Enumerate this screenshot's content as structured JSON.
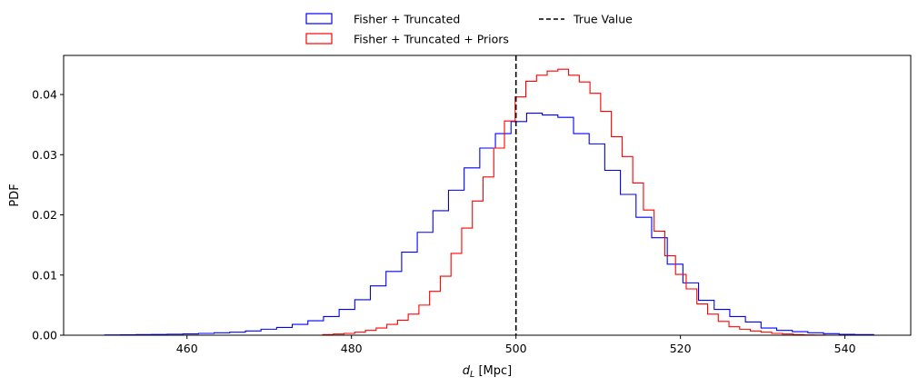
{
  "chart_data": {
    "type": "histogram",
    "xlabel": "d_L [Mpc]",
    "xlabel_parts": {
      "main": "d",
      "sub": "L",
      "rest": " [Mpc]"
    },
    "ylabel": "PDF",
    "xlim": [
      445,
      548
    ],
    "ylim": [
      0,
      0.0465
    ],
    "xticks": [
      460,
      480,
      500,
      520,
      540
    ],
    "yticks": [
      0.0,
      0.01,
      0.02,
      0.03,
      0.04
    ],
    "ytick_labels": [
      "0.00",
      "0.01",
      "0.02",
      "0.03",
      "0.04"
    ],
    "grid": false,
    "legend_placement": "upper-center-outside",
    "series": [
      {
        "name": "Fisher + Truncated",
        "color": "#0000ff",
        "style": "step",
        "bin_edges": [
          450,
          451.9,
          453.8,
          455.7,
          457.6,
          459.5,
          461.4,
          463.3,
          465.2,
          467.1,
          469.0,
          470.9,
          472.8,
          474.7,
          476.6,
          478.5,
          480.4,
          482.3,
          484.2,
          486.1,
          488.0,
          489.9,
          491.8,
          493.7,
          495.6,
          497.5,
          499.4,
          501.3,
          503.2,
          505.1,
          507.0,
          508.9,
          510.8,
          512.7,
          514.6,
          516.5,
          518.4,
          520.3,
          522.2,
          524.1,
          526.0,
          527.9,
          529.8,
          531.7,
          533.6,
          535.5,
          537.4,
          539.3,
          541.2,
          543.5
        ],
        "values": [
          5e-05,
          7e-05,
          0.0001,
          0.00013,
          0.00017,
          0.00022,
          0.0003,
          0.0004,
          0.0005,
          0.0007,
          0.001,
          0.0013,
          0.0018,
          0.0024,
          0.0031,
          0.0043,
          0.0059,
          0.0082,
          0.0106,
          0.0138,
          0.0171,
          0.0207,
          0.0241,
          0.0278,
          0.0311,
          0.0335,
          0.0355,
          0.0369,
          0.0366,
          0.0362,
          0.0335,
          0.0318,
          0.0274,
          0.0234,
          0.0196,
          0.0162,
          0.0118,
          0.0087,
          0.0058,
          0.0043,
          0.0031,
          0.0022,
          0.0012,
          0.0008,
          0.0006,
          0.0004,
          0.00025,
          0.00015,
          0.0001
        ]
      },
      {
        "name": "Fisher + Truncated + Priors",
        "color": "#ff0000",
        "style": "step",
        "bin_edges": [
          476.5,
          477.8,
          479.1,
          480.4,
          481.7,
          483.0,
          484.3,
          485.6,
          486.9,
          488.2,
          489.5,
          490.8,
          492.1,
          493.4,
          494.7,
          496.0,
          497.3,
          498.6,
          499.9,
          501.2,
          502.5,
          503.8,
          505.1,
          506.4,
          507.7,
          509.0,
          510.3,
          511.6,
          512.9,
          514.2,
          515.5,
          516.8,
          518.1,
          519.4,
          520.7,
          522.0,
          523.3,
          524.6,
          525.9,
          527.2,
          528.5,
          529.8,
          531.1,
          532.4,
          533.7,
          535.0,
          536.3,
          537.6
        ],
        "values": [
          0.0001,
          0.0002,
          0.0003,
          0.0005,
          0.0008,
          0.0012,
          0.0018,
          0.0025,
          0.0035,
          0.005,
          0.0073,
          0.0098,
          0.0136,
          0.0178,
          0.0223,
          0.0263,
          0.0311,
          0.0356,
          0.0396,
          0.0422,
          0.0432,
          0.0439,
          0.0442,
          0.0432,
          0.0421,
          0.0402,
          0.0372,
          0.033,
          0.0297,
          0.0253,
          0.0208,
          0.0173,
          0.0132,
          0.0101,
          0.0077,
          0.0052,
          0.0035,
          0.0023,
          0.0014,
          0.001,
          0.0007,
          0.0005,
          0.0003,
          0.0002,
          0.0001,
          5e-05,
          3e-05
        ]
      }
    ],
    "vlines": [
      {
        "name": "True Value",
        "x": 500,
        "color": "#000000",
        "style": "dashed"
      }
    ]
  }
}
